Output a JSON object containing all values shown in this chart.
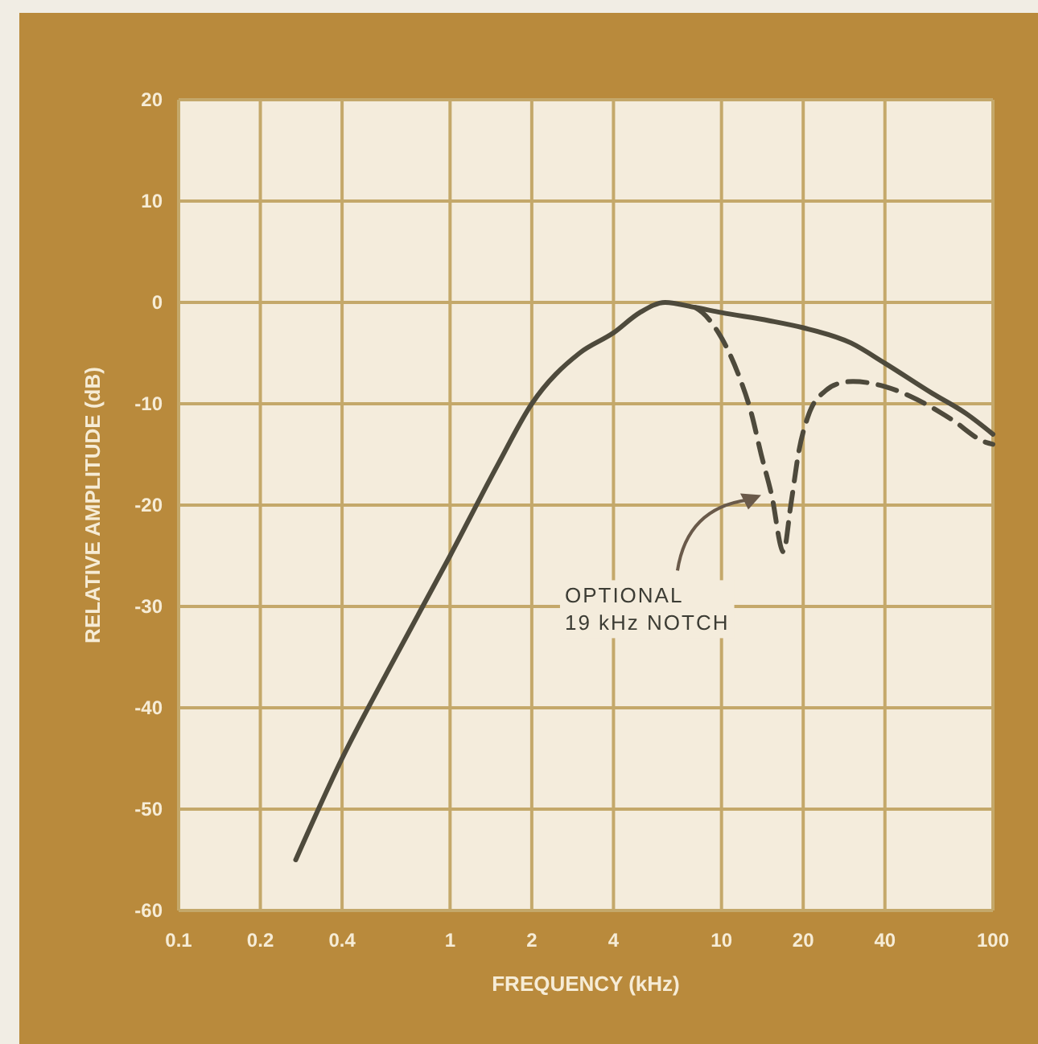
{
  "chart_data": {
    "type": "line",
    "xlabel": "FREQUENCY (kHz)",
    "ylabel": "RELATIVE AMPLITUDE (dB)",
    "log": "x",
    "xlim": [
      0.1,
      100
    ],
    "xticks": [
      0.1,
      0.2,
      0.4,
      1,
      2,
      4,
      10,
      20,
      40,
      100
    ],
    "ylim": [
      -60,
      20
    ],
    "yticks": [
      -60,
      -50,
      -40,
      -30,
      -20,
      -10,
      0,
      10,
      20
    ],
    "grid": true,
    "series": [
      {
        "color": "#4e4a3c",
        "line_style": "solid",
        "x": [
          0.27,
          0.4,
          0.6,
          1,
          1.5,
          2,
          3,
          4,
          5,
          6.2,
          8,
          10,
          15,
          20,
          30,
          40,
          60,
          80,
          100
        ],
        "values": [
          -55,
          -45,
          -36,
          -25,
          -16,
          -10,
          -5,
          -3,
          -1,
          0,
          -0.5,
          -1,
          -1.8,
          -2.5,
          -4,
          -6,
          -9,
          -11,
          -13
        ]
      },
      {
        "color": "#4e4a3c",
        "line_style": "dashed",
        "x": [
          8,
          8.5,
          10,
          11.5,
          12.9,
          14,
          15.3,
          16.9,
          18,
          19.3,
          21,
          24.2,
          27,
          30.5,
          40,
          50,
          70,
          94,
          100
        ],
        "values": [
          -0.5,
          -1,
          -3.5,
          -7,
          -11,
          -15,
          -19,
          -24.6,
          -20,
          -14.6,
          -11,
          -8.7,
          -8,
          -7.8,
          -8.3,
          -9.3,
          -11.5,
          -13.8,
          -14
        ]
      }
    ],
    "annotations": [
      {
        "text": "OPTIONAL\n19 kHz NOTCH",
        "x": 14,
        "y": -19
      }
    ]
  }
}
